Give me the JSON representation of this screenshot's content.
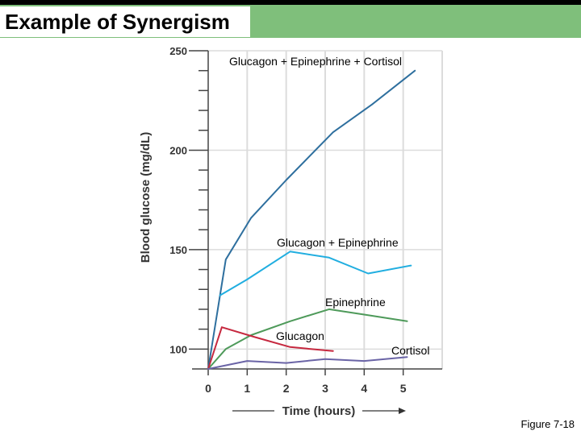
{
  "slide": {
    "title": "Example of Synergism",
    "figure_label": "Figure 7-18",
    "header_color": "#7fbf7b"
  },
  "chart_data": {
    "type": "line",
    "title": "",
    "xlabel": "Time (hours)",
    "ylabel": "Blood glucose (mg/dL)",
    "xlim": [
      0,
      6
    ],
    "ylim": [
      90,
      250
    ],
    "xticks": [
      "0",
      "1",
      "2",
      "3",
      "4",
      "5"
    ],
    "yticks": [
      "100",
      "150",
      "200",
      "250"
    ],
    "grid": true,
    "series": [
      {
        "name": "Glucagon + Epinephrine + Cortisol",
        "color": "#2e6f9e",
        "x": [
          0,
          0.45,
          1.1,
          2,
          3.2,
          4.2,
          5.3
        ],
        "y": [
          90,
          145,
          166,
          185,
          209,
          223,
          240
        ]
      },
      {
        "name": "Glucagon + Epinephrine",
        "color": "#21aee0",
        "x": [
          0.3,
          1.0,
          2.1,
          3.1,
          4.1,
          5.2
        ],
        "y": [
          127,
          135,
          149,
          146,
          138,
          142
        ]
      },
      {
        "name": "Epinephrine",
        "color": "#4e9a5a",
        "x": [
          0,
          0.45,
          1.1,
          2.1,
          3.1,
          4.1,
          5.1
        ],
        "y": [
          90,
          100,
          107,
          114,
          120,
          117,
          114
        ]
      },
      {
        "name": "Glucagon",
        "color": "#c6283f",
        "x": [
          0,
          0.35,
          1.2,
          2.1,
          3.2
        ],
        "y": [
          90,
          111,
          106,
          101,
          99
        ]
      },
      {
        "name": "Cortisol",
        "color": "#6a64a6",
        "x": [
          0,
          1.0,
          2.0,
          3.0,
          4.0,
          5.1
        ],
        "y": [
          90,
          94,
          93,
          95,
          94,
          96
        ]
      }
    ]
  }
}
